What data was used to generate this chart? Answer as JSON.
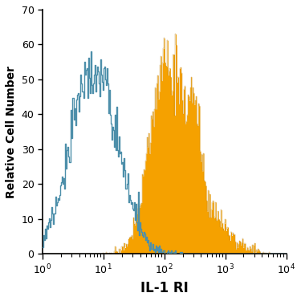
{
  "title": "",
  "xlabel": "IL-1 RI",
  "ylabel": "Relative Cell Number",
  "xlim_log": [
    1,
    10000
  ],
  "ylim": [
    0,
    70
  ],
  "yticks": [
    0,
    10,
    20,
    30,
    40,
    50,
    60,
    70
  ],
  "blue_color": "#7eb8d4",
  "orange_color": "#f5a100",
  "orange_edge_color": "#b87800",
  "blue_edge_color": "#4d8faa",
  "background_color": "#ffffff",
  "xlabel_fontsize": 12,
  "ylabel_fontsize": 10,
  "tick_fontsize": 9,
  "blue_peak_log_x": 0.85,
  "blue_peak_y": 58,
  "blue_log_std": 0.38,
  "orange_peak_log_x": 2.05,
  "orange_peak_y": 63,
  "orange_log_std": 0.28,
  "n_bins": 300
}
